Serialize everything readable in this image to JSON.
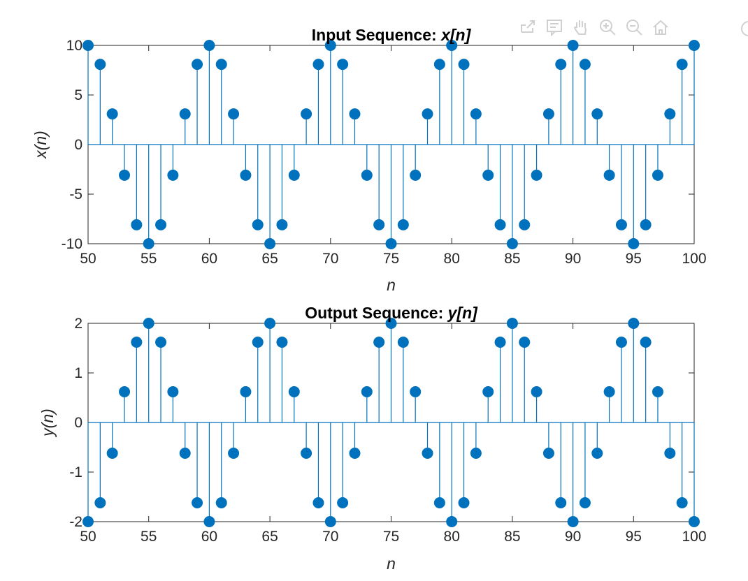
{
  "toolbar": {
    "icons": [
      "export-icon",
      "data-tips-icon",
      "pan-icon",
      "zoom-in-icon",
      "zoom-out-icon",
      "home-icon",
      "more-icon"
    ]
  },
  "chart_data": [
    {
      "type": "stem",
      "title_prefix": "Input Sequence: ",
      "title_var": "x[n]",
      "xlabel": "n",
      "ylabel": "x(n)",
      "xlim": [
        50,
        100
      ],
      "ylim": [
        -10,
        10
      ],
      "xticks": [
        50,
        55,
        60,
        65,
        70,
        75,
        80,
        85,
        90,
        95,
        100
      ],
      "yticks": [
        -10,
        -5,
        0,
        5,
        10
      ],
      "color": "#0072BD",
      "x": [
        50,
        51,
        52,
        53,
        54,
        55,
        56,
        57,
        58,
        59,
        60,
        61,
        62,
        63,
        64,
        65,
        66,
        67,
        68,
        69,
        70,
        71,
        72,
        73,
        74,
        75,
        76,
        77,
        78,
        79,
        80,
        81,
        82,
        83,
        84,
        85,
        86,
        87,
        88,
        89,
        90,
        91,
        92,
        93,
        94,
        95,
        96,
        97,
        98,
        99,
        100
      ],
      "y": [
        10,
        8.09,
        3.09,
        -3.09,
        -8.09,
        -10,
        -8.09,
        -3.09,
        3.09,
        8.09,
        10,
        8.09,
        3.09,
        -3.09,
        -8.09,
        -10,
        -8.09,
        -3.09,
        3.09,
        8.09,
        10,
        8.09,
        3.09,
        -3.09,
        -8.09,
        -10,
        -8.09,
        -3.09,
        3.09,
        8.09,
        10,
        8.09,
        3.09,
        -3.09,
        -8.09,
        -10,
        -8.09,
        -3.09,
        3.09,
        8.09,
        10,
        8.09,
        3.09,
        -3.09,
        -8.09,
        -10,
        -8.09,
        -3.09,
        3.09,
        8.09,
        10
      ]
    },
    {
      "type": "stem",
      "title_prefix": "Output Sequence: ",
      "title_var": "y[n]",
      "xlabel": "n",
      "ylabel": "y(n)",
      "xlim": [
        50,
        100
      ],
      "ylim": [
        -2,
        2
      ],
      "xticks": [
        50,
        55,
        60,
        65,
        70,
        75,
        80,
        85,
        90,
        95,
        100
      ],
      "yticks": [
        -2,
        -1,
        0,
        1,
        2
      ],
      "color": "#0072BD",
      "x": [
        50,
        51,
        52,
        53,
        54,
        55,
        56,
        57,
        58,
        59,
        60,
        61,
        62,
        63,
        64,
        65,
        66,
        67,
        68,
        69,
        70,
        71,
        72,
        73,
        74,
        75,
        76,
        77,
        78,
        79,
        80,
        81,
        82,
        83,
        84,
        85,
        86,
        87,
        88,
        89,
        90,
        91,
        92,
        93,
        94,
        95,
        96,
        97,
        98,
        99,
        100
      ],
      "y": [
        -2,
        -1.62,
        -0.62,
        0.62,
        1.62,
        2,
        1.62,
        0.62,
        -0.62,
        -1.62,
        -2,
        -1.62,
        -0.62,
        0.62,
        1.62,
        2,
        1.62,
        0.62,
        -0.62,
        -1.62,
        -2,
        -1.62,
        -0.62,
        0.62,
        1.62,
        2,
        1.62,
        0.62,
        -0.62,
        -1.62,
        -2,
        -1.62,
        -0.62,
        0.62,
        1.62,
        2,
        1.62,
        0.62,
        -0.62,
        -1.62,
        -2,
        -1.62,
        -0.62,
        0.62,
        1.62,
        2,
        1.62,
        0.62,
        -0.62,
        -1.62,
        -2
      ]
    }
  ]
}
